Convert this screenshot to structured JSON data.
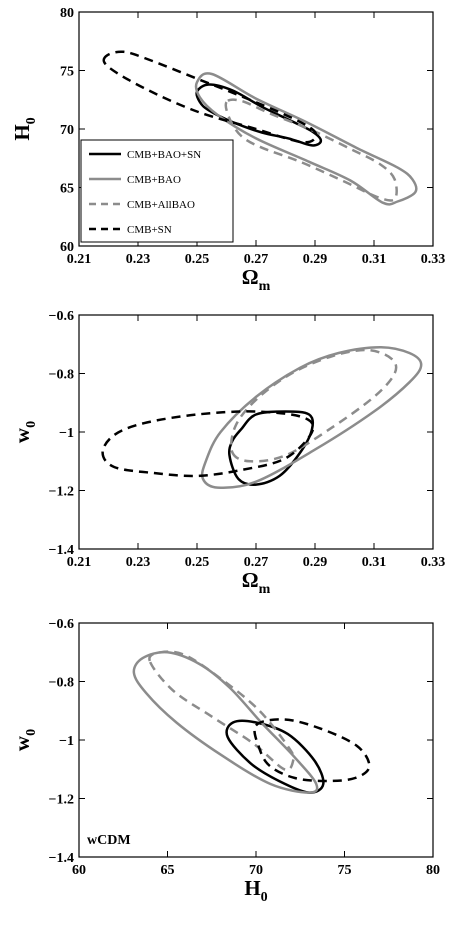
{
  "legend": {
    "entries": [
      {
        "name": "CMB+BAO+SN",
        "color": "#000000",
        "dash": false
      },
      {
        "name": "CMB+BAO",
        "color": "#8c8c8c",
        "dash": false
      },
      {
        "name": "CMB+AllBAO",
        "color": "#8c8c8c",
        "dash": true
      },
      {
        "name": "CMB+SN",
        "color": "#000000",
        "dash": true
      }
    ]
  },
  "chart_data": [
    {
      "type": "contour",
      "xlabel": "Ω",
      "xlabel_sub": "m",
      "ylabel": "H",
      "ylabel_sub": "0",
      "xlim": [
        0.21,
        0.33
      ],
      "ylim": [
        60,
        80
      ],
      "xticks": [
        "0.21",
        "0.23",
        "0.25",
        "0.27",
        "0.29",
        "0.31",
        "0.33"
      ],
      "yticks": [
        "60",
        "65",
        "70",
        "75",
        "80"
      ],
      "legend_position": "bottom-left",
      "series": [
        {
          "name": "CMB+BAO+SN",
          "color": "#000000",
          "dash": false,
          "points": [
            [
              0.25,
              73.2
            ],
            [
              0.251,
              72.3
            ],
            [
              0.254,
              71.6
            ],
            [
              0.262,
              70.6
            ],
            [
              0.272,
              69.7
            ],
            [
              0.281,
              69.2
            ],
            [
              0.289,
              68.6
            ],
            [
              0.292,
              69.0
            ],
            [
              0.289,
              69.8
            ],
            [
              0.281,
              70.8
            ],
            [
              0.272,
              71.9
            ],
            [
              0.262,
              73.3
            ],
            [
              0.254,
              73.8
            ]
          ]
        },
        {
          "name": "CMB+BAO",
          "color": "#8c8c8c",
          "dash": false,
          "points": [
            [
              0.25,
              74.0
            ],
            [
              0.251,
              72.7
            ],
            [
              0.257,
              71.2
            ],
            [
              0.27,
              69.2
            ],
            [
              0.288,
              67.2
            ],
            [
              0.302,
              65.6
            ],
            [
              0.313,
              63.7
            ],
            [
              0.318,
              63.8
            ],
            [
              0.324,
              64.6
            ],
            [
              0.323,
              65.7
            ],
            [
              0.318,
              66.7
            ],
            [
              0.304,
              68.4
            ],
            [
              0.287,
              70.6
            ],
            [
              0.27,
              72.6
            ],
            [
              0.255,
              74.7
            ]
          ]
        },
        {
          "name": "CMB+AllBAO",
          "color": "#8c8c8c",
          "dash": true,
          "points": [
            [
              0.26,
              72.3
            ],
            [
              0.261,
              70.9
            ],
            [
              0.265,
              69.4
            ],
            [
              0.272,
              68.4
            ],
            [
              0.285,
              67.2
            ],
            [
              0.3,
              65.5
            ],
            [
              0.311,
              64.2
            ],
            [
              0.317,
              64.0
            ],
            [
              0.317,
              65.7
            ],
            [
              0.312,
              67.0
            ],
            [
              0.302,
              68.3
            ],
            [
              0.288,
              70.0
            ],
            [
              0.275,
              71.3
            ],
            [
              0.265,
              72.4
            ]
          ]
        },
        {
          "name": "CMB+SN",
          "color": "#000000",
          "dash": true,
          "points": [
            [
              0.219,
              76.2
            ],
            [
              0.22,
              75.3
            ],
            [
              0.232,
              73.5
            ],
            [
              0.25,
              71.5
            ],
            [
              0.27,
              70.0
            ],
            [
              0.285,
              68.9
            ],
            [
              0.29,
              69.2
            ],
            [
              0.289,
              70.0
            ],
            [
              0.28,
              71.2
            ],
            [
              0.265,
              72.8
            ],
            [
              0.25,
              74.3
            ],
            [
              0.234,
              75.9
            ],
            [
              0.225,
              76.6
            ]
          ]
        }
      ]
    },
    {
      "type": "contour",
      "xlabel": "Ω",
      "xlabel_sub": "m",
      "ylabel": "w",
      "ylabel_sub": "0",
      "xlim": [
        0.21,
        0.33
      ],
      "ylim": [
        -1.4,
        -0.6
      ],
      "xticks": [
        "0.21",
        "0.23",
        "0.25",
        "0.27",
        "0.29",
        "0.31",
        "0.33"
      ],
      "yticks": [
        "−1.4",
        "−1.2",
        "−1",
        "−0.8",
        "−0.6"
      ],
      "series": [
        {
          "name": "CMB+BAO+SN",
          "color": "#000000",
          "dash": false,
          "points": [
            [
              0.261,
              -1.08
            ],
            [
              0.264,
              -1.16
            ],
            [
              0.27,
              -1.18
            ],
            [
              0.278,
              -1.15
            ],
            [
              0.285,
              -1.07
            ],
            [
              0.289,
              -0.99
            ],
            [
              0.288,
              -0.94
            ],
            [
              0.28,
              -0.93
            ],
            [
              0.27,
              -0.94
            ],
            [
              0.265,
              -0.99
            ],
            [
              0.262,
              -1.03
            ]
          ]
        },
        {
          "name": "CMB+BAO",
          "color": "#8c8c8c",
          "dash": false,
          "points": [
            [
              0.252,
              -1.16
            ],
            [
              0.257,
              -1.19
            ],
            [
              0.27,
              -1.17
            ],
            [
              0.29,
              -1.06
            ],
            [
              0.31,
              -0.93
            ],
            [
              0.322,
              -0.83
            ],
            [
              0.326,
              -0.77
            ],
            [
              0.322,
              -0.73
            ],
            [
              0.312,
              -0.71
            ],
            [
              0.298,
              -0.73
            ],
            [
              0.285,
              -0.78
            ],
            [
              0.27,
              -0.88
            ],
            [
              0.258,
              -1.0
            ],
            [
              0.253,
              -1.1
            ]
          ]
        },
        {
          "name": "CMB+AllBAO",
          "color": "#8c8c8c",
          "dash": true,
          "points": [
            [
              0.262,
              -1.07
            ],
            [
              0.268,
              -1.1
            ],
            [
              0.28,
              -1.08
            ],
            [
              0.295,
              -0.99
            ],
            [
              0.31,
              -0.88
            ],
            [
              0.317,
              -0.8
            ],
            [
              0.316,
              -0.75
            ],
            [
              0.308,
              -0.72
            ],
            [
              0.296,
              -0.74
            ],
            [
              0.282,
              -0.8
            ],
            [
              0.27,
              -0.89
            ],
            [
              0.263,
              -0.98
            ]
          ]
        },
        {
          "name": "CMB+SN",
          "color": "#000000",
          "dash": true,
          "points": [
            [
              0.218,
              -1.07
            ],
            [
              0.222,
              -1.12
            ],
            [
              0.235,
              -1.14
            ],
            [
              0.25,
              -1.15
            ],
            [
              0.265,
              -1.13
            ],
            [
              0.28,
              -1.09
            ],
            [
              0.289,
              -1.0
            ],
            [
              0.286,
              -0.95
            ],
            [
              0.27,
              -0.93
            ],
            [
              0.25,
              -0.94
            ],
            [
              0.232,
              -0.97
            ],
            [
              0.222,
              -1.01
            ]
          ]
        }
      ]
    },
    {
      "type": "contour",
      "xlabel": "H",
      "xlabel_sub": "0",
      "ylabel": "w",
      "ylabel_sub": "0",
      "xlim": [
        60,
        80
      ],
      "ylim": [
        -1.4,
        -0.6
      ],
      "xticks": [
        "60",
        "65",
        "70",
        "75",
        "80"
      ],
      "yticks": [
        "−1.4",
        "−1.2",
        "−1",
        "−0.8",
        "−0.6"
      ],
      "annotation": "wCDM",
      "series": [
        {
          "name": "CMB+BAO+SN",
          "color": "#000000",
          "dash": false,
          "points": [
            [
              68.4,
              -0.99
            ],
            [
              68.7,
              -0.94
            ],
            [
              70.0,
              -0.94
            ],
            [
              71.8,
              -0.98
            ],
            [
              73.3,
              -1.07
            ],
            [
              73.8,
              -1.15
            ],
            [
              73.0,
              -1.18
            ],
            [
              71.3,
              -1.14
            ],
            [
              69.7,
              -1.08
            ]
          ]
        },
        {
          "name": "CMB+BAO",
          "color": "#8c8c8c",
          "dash": false,
          "points": [
            [
              63.1,
              -0.77
            ],
            [
              63.6,
              -0.72
            ],
            [
              65.0,
              -0.7
            ],
            [
              66.8,
              -0.74
            ],
            [
              68.5,
              -0.82
            ],
            [
              70.3,
              -0.94
            ],
            [
              72.2,
              -1.06
            ],
            [
              73.4,
              -1.15
            ],
            [
              73.0,
              -1.18
            ],
            [
              70.8,
              -1.15
            ],
            [
              68.0,
              -1.05
            ],
            [
              65.5,
              -0.94
            ],
            [
              63.8,
              -0.84
            ]
          ]
        },
        {
          "name": "CMB+AllBAO",
          "color": "#8c8c8c",
          "dash": true,
          "points": [
            [
              64.0,
              -0.73
            ],
            [
              64.6,
              -0.7
            ],
            [
              66.0,
              -0.71
            ],
            [
              68.0,
              -0.79
            ],
            [
              70.2,
              -0.9
            ],
            [
              71.9,
              -1.03
            ],
            [
              72.1,
              -1.07
            ],
            [
              71.6,
              -1.1
            ],
            [
              69.8,
              -1.01
            ],
            [
              67.5,
              -0.92
            ],
            [
              65.3,
              -0.83
            ]
          ]
        },
        {
          "name": "CMB+SN",
          "color": "#000000",
          "dash": true,
          "points": [
            [
              70.0,
              -0.95
            ],
            [
              71.6,
              -0.93
            ],
            [
              73.6,
              -0.96
            ],
            [
              75.7,
              -1.02
            ],
            [
              76.4,
              -1.09
            ],
            [
              75.6,
              -1.13
            ],
            [
              74.0,
              -1.14
            ],
            [
              72.2,
              -1.13
            ],
            [
              70.8,
              -1.09
            ],
            [
              70.2,
              -1.03
            ]
          ]
        }
      ]
    }
  ]
}
